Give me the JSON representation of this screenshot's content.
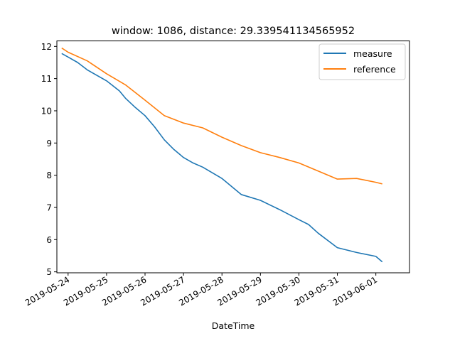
{
  "chart_data": {
    "type": "line",
    "title": "window: 1086, distance: 29.339541134565952",
    "xlabel": "DateTime",
    "ylabel": "",
    "x_ticks": [
      "2019-05-24",
      "2019-05-25",
      "2019-05-26",
      "2019-05-27",
      "2019-05-28",
      "2019-05-29",
      "2019-05-30",
      "2019-05-31",
      "2019-06-01"
    ],
    "y_ticks": [
      "5",
      "6",
      "7",
      "8",
      "9",
      "10",
      "11",
      "12"
    ],
    "xlim": [
      "2019-05-23 17:00",
      "2019-06-01 21:00"
    ],
    "ylim": [
      4.97,
      12.17
    ],
    "legend_position": "upper right",
    "grid": false,
    "series": [
      {
        "name": "measure",
        "color": "#1f77b4",
        "x": [
          "2019-05-23 20:00",
          "2019-05-24 00:00",
          "2019-05-24 06:00",
          "2019-05-24 12:00",
          "2019-05-25 00:00",
          "2019-05-25 08:00",
          "2019-05-25 12:00",
          "2019-05-25 18:00",
          "2019-05-26 00:00",
          "2019-05-26 06:00",
          "2019-05-26 12:00",
          "2019-05-26 18:00",
          "2019-05-27 00:00",
          "2019-05-27 06:00",
          "2019-05-27 12:00",
          "2019-05-28 00:00",
          "2019-05-28 12:00",
          "2019-05-29 00:00",
          "2019-05-29 12:00",
          "2019-05-30 00:00",
          "2019-05-30 06:00",
          "2019-05-30 12:00",
          "2019-05-31 00:00",
          "2019-05-31 12:00",
          "2019-06-01 00:00",
          "2019-06-01 04:00"
        ],
        "y": [
          11.78,
          11.67,
          11.5,
          11.27,
          10.93,
          10.62,
          10.38,
          10.1,
          9.85,
          9.5,
          9.1,
          8.8,
          8.55,
          8.38,
          8.25,
          7.9,
          7.4,
          7.22,
          6.93,
          6.62,
          6.47,
          6.2,
          5.75,
          5.6,
          5.48,
          5.31
        ]
      },
      {
        "name": "reference",
        "color": "#ff7f0e",
        "x": [
          "2019-05-23 20:00",
          "2019-05-24 00:00",
          "2019-05-24 12:00",
          "2019-05-25 00:00",
          "2019-05-25 12:00",
          "2019-05-26 00:00",
          "2019-05-26 12:00",
          "2019-05-27 00:00",
          "2019-05-27 12:00",
          "2019-05-28 00:00",
          "2019-05-28 12:00",
          "2019-05-29 00:00",
          "2019-05-29 12:00",
          "2019-05-30 00:00",
          "2019-05-30 12:00",
          "2019-05-31 00:00",
          "2019-05-31 12:00",
          "2019-06-01 00:00",
          "2019-06-01 04:00"
        ],
        "y": [
          11.95,
          11.82,
          11.55,
          11.15,
          10.8,
          10.33,
          9.85,
          9.62,
          9.47,
          9.18,
          8.92,
          8.7,
          8.55,
          8.38,
          8.13,
          7.88,
          7.9,
          7.78,
          7.73
        ]
      }
    ]
  }
}
